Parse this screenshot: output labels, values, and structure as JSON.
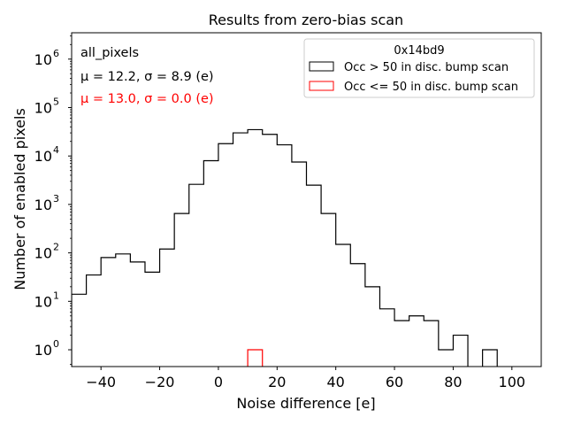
{
  "chart_data": {
    "type": "histogram",
    "title": "Results from zero-bias scan",
    "xlabel": "Noise difference [e]",
    "ylabel": "Number of enabled pixels",
    "xlim": [
      -50,
      110
    ],
    "ylim": [
      0.45,
      3500000
    ],
    "yscale": "log",
    "grid": false,
    "x_ticks": [
      -40,
      -20,
      0,
      20,
      40,
      60,
      80,
      100
    ],
    "x_tick_labels": [
      "−40",
      "−20",
      "0",
      "20",
      "40",
      "60",
      "80",
      "100"
    ],
    "y_ticks": [
      1,
      10,
      100,
      1000,
      10000,
      100000,
      1000000
    ],
    "y_tick_labels": [
      {
        "base": "10",
        "exp": "0"
      },
      {
        "base": "10",
        "exp": "1"
      },
      {
        "base": "10",
        "exp": "2"
      },
      {
        "base": "10",
        "exp": "3"
      },
      {
        "base": "10",
        "exp": "4"
      },
      {
        "base": "10",
        "exp": "5"
      },
      {
        "base": "10",
        "exp": "6"
      }
    ],
    "legend": {
      "title": "0x14bd9",
      "position": "upper right",
      "entries": [
        {
          "label": "Occ > 50 in disc. bump scan",
          "color": "#000000"
        },
        {
          "label": "Occ <= 50 in disc. bump scan",
          "color": "#ff0000"
        }
      ]
    },
    "annotations": {
      "name": "all_pixels",
      "stats_black": "μ = 12.2, σ = 8.9 (e)",
      "stats_red": "μ = 13.0, σ = 0.0 (e)",
      "red_color": "#ff0000"
    },
    "series": [
      {
        "name": "Occ > 50 in disc. bump scan",
        "color": "#000000",
        "bin_edges": [
          -50,
          -45,
          -40,
          -35,
          -30,
          -25,
          -20,
          -15,
          -10,
          -5,
          0,
          5,
          10,
          15,
          20,
          25,
          30,
          35,
          40,
          45,
          50,
          55,
          60,
          65,
          70,
          75,
          80,
          85,
          90,
          95,
          100
        ],
        "counts": [
          14,
          35,
          80,
          95,
          65,
          40,
          120,
          650,
          2600,
          8000,
          18000,
          30000,
          35000,
          28000,
          17000,
          7500,
          2500,
          650,
          150,
          60,
          20,
          7,
          4,
          5,
          4,
          1,
          2,
          0,
          1,
          0
        ]
      },
      {
        "name": "Occ <= 50 in disc. bump scan",
        "color": "#ff0000",
        "bin_edges": [
          10,
          15
        ],
        "counts": [
          1
        ]
      }
    ]
  }
}
